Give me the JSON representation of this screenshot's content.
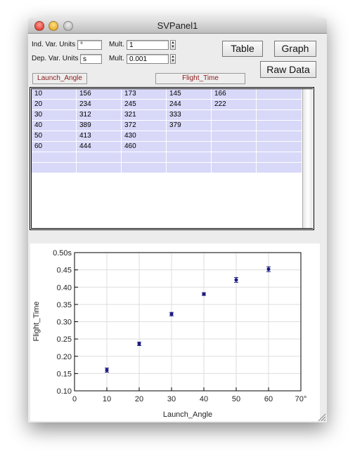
{
  "window": {
    "title": "SVPanel1"
  },
  "controls": {
    "ind_units_label": "Ind. Var. Units",
    "ind_units": "°",
    "ind_mult_label": "Mult.",
    "ind_mult": "1",
    "dep_units_label": "Dep. Var. Units",
    "dep_units": "s",
    "dep_mult_label": "Mult.",
    "dep_mult": "0.001"
  },
  "buttons": [
    "Table",
    "Graph",
    "Raw Data"
  ],
  "columns": [
    "Launch_Angle",
    "Flight_Time"
  ],
  "table": {
    "rows": [
      [
        10,
        156,
        173,
        145,
        166
      ],
      [
        20,
        234,
        245,
        244,
        222
      ],
      [
        30,
        312,
        321,
        333
      ],
      [
        40,
        389,
        372,
        379
      ],
      [
        50,
        413,
        430
      ],
      [
        60,
        444,
        460
      ]
    ]
  },
  "chart_data": {
    "type": "scatter",
    "x_label": "Launch_Angle",
    "y_label": "Flight_Time",
    "x": [
      10,
      20,
      30,
      40,
      50,
      60
    ],
    "values": [
      0.16,
      0.236,
      0.322,
      0.38,
      0.421,
      0.452
    ],
    "errors": [
      0.006,
      0.005,
      0.005,
      0.004,
      0.007,
      0.007
    ],
    "color": "#1a1a80",
    "xlim": [
      0,
      70
    ],
    "ylim": [
      0.1,
      0.5
    ],
    "xticks": [
      0,
      10,
      20,
      30,
      40,
      50,
      60,
      {
        "value": 70,
        "label": "70°"
      }
    ],
    "yticks": [
      {
        "value": 0.1,
        "label": "0.10"
      },
      {
        "value": 0.15,
        "label": "0.15"
      },
      {
        "value": 0.2,
        "label": "0.20"
      },
      {
        "value": 0.25,
        "label": "0.25"
      },
      {
        "value": 0.3,
        "label": "0.30"
      },
      {
        "value": 0.35,
        "label": "0.35"
      },
      {
        "value": 0.4,
        "label": "0.40"
      },
      {
        "value": 0.45,
        "label": "0.45"
      },
      {
        "value": 0.5,
        "label": "0.50s"
      }
    ],
    "grid": true
  }
}
